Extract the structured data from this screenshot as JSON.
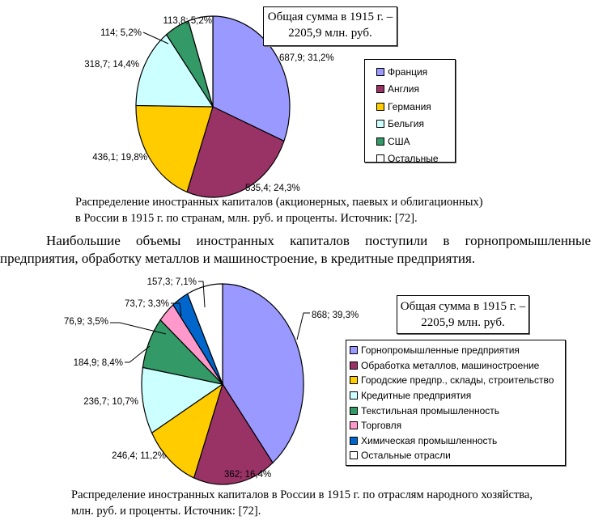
{
  "chart_data": [
    {
      "type": "pie",
      "title": "",
      "total_note": [
        "Общая сумма в 1915 г. –",
        "2205,9 млн. руб."
      ],
      "legend_placement": "right",
      "slices": [
        {
          "name": "Франция",
          "value": 687.9,
          "percent": 31.2,
          "label": "687,9; 31,2%",
          "color": "#9999ff"
        },
        {
          "name": "Англия",
          "value": 535.4,
          "percent": 24.3,
          "label": "535,4; 24,3%",
          "color": "#993366"
        },
        {
          "name": "Германия",
          "value": 436.1,
          "percent": 19.8,
          "label": "436,1; 19,8%",
          "color": "#ffcc00"
        },
        {
          "name": "Бельгия",
          "value": 318.7,
          "percent": 14.4,
          "label": "318,7; 14,4%",
          "color": "#ccffff"
        },
        {
          "name": "США",
          "value": 114,
          "percent": 5.2,
          "label": "114; 5,2%",
          "color": "#339966"
        },
        {
          "name": "Остальные",
          "value": 113.8,
          "percent": 5.2,
          "label": "113,8; 5,2%",
          "color": "#ffffff"
        }
      ],
      "caption": [
        "Распределение иностранных капиталов (акционерных, паевых и облигационных)",
        "в России в 1915 г. по странам, млн. руб. и проценты.  Источник: [72]."
      ]
    },
    {
      "type": "pie",
      "title": "",
      "total_note": [
        "Общая сумма в 1915 г. –",
        "2205,9 млн. руб."
      ],
      "legend_placement": "right",
      "slices": [
        {
          "name": "Горнопромышленные предприятия",
          "value": 868,
          "percent": 39.3,
          "label": "868; 39,3%",
          "color": "#9999ff"
        },
        {
          "name": "Обработка металлов, машиностроение",
          "value": 362,
          "percent": 16.4,
          "label": "362; 16,4%",
          "color": "#993366"
        },
        {
          "name": "Городские предпр., склады, строительство",
          "value": 246.4,
          "percent": 11.2,
          "label": "246,4; 11,2%",
          "color": "#ffcc00"
        },
        {
          "name": "Кредитные предприятия",
          "value": 236.7,
          "percent": 10.7,
          "label": "236,7; 10,7%",
          "color": "#ccffff"
        },
        {
          "name": "Текстильная промышленность",
          "value": 184.9,
          "percent": 8.4,
          "label": "184,9; 8,4%",
          "color": "#339966"
        },
        {
          "name": "Торговля",
          "value": 76.9,
          "percent": 3.5,
          "label": "76,9; 3,5%",
          "color": "#ff99cc"
        },
        {
          "name": "Химическая промышленность",
          "value": 73.7,
          "percent": 3.3,
          "label": "73,7; 3,3%",
          "color": "#0066cc"
        },
        {
          "name": "Остальные отрасли",
          "value": 157.3,
          "percent": 7.1,
          "label": "157,3; 7,1%",
          "color": "#ffffff"
        }
      ],
      "caption": [
        "Распределение иностранных капиталов в России в 1915 г. по отраслям народного хозяйства,",
        "млн. руб. и проценты.  Источник: [72]."
      ]
    }
  ],
  "paragraph": "Наибольшие объемы иностранных капиталов поступили в горнопромышленные предприятия, обработку металлов и  машиностроение, в кредитные предприятия."
}
